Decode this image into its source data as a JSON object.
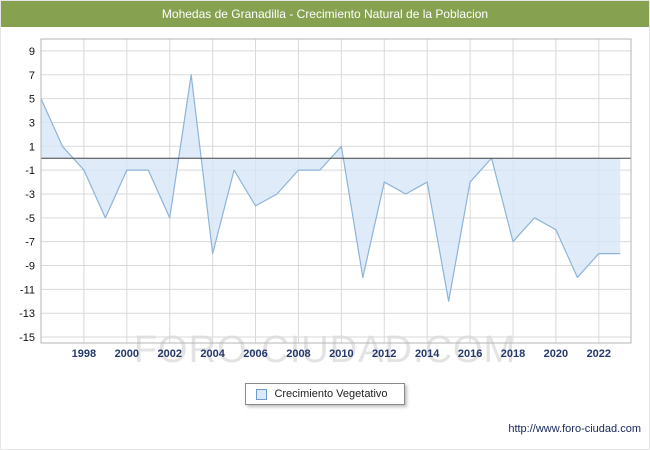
{
  "header": {
    "title": "Mohedas de Granadilla - Crecimiento Natural de la Poblacion",
    "bg_color": "#86a251"
  },
  "watermark": "FORO-CIUDAD.COM",
  "legend": {
    "label": "Crecimiento Vegetativo"
  },
  "footer": {
    "url": "http://www.foro-ciudad.com"
  },
  "chart_data": {
    "type": "area",
    "title": "Mohedas de Granadilla - Crecimiento Natural de la Poblacion",
    "x": [
      1996,
      1997,
      1998,
      1999,
      2000,
      2001,
      2002,
      2003,
      2004,
      2005,
      2006,
      2007,
      2008,
      2009,
      2010,
      2011,
      2012,
      2013,
      2014,
      2015,
      2016,
      2017,
      2018,
      2019,
      2020,
      2021,
      2022,
      2023
    ],
    "values": [
      5,
      1,
      -1,
      -5,
      -1,
      -1,
      -5,
      7,
      -8,
      -1,
      -4,
      -3,
      -1,
      -1,
      1,
      -10,
      -2,
      -3,
      -2,
      -12,
      -2,
      0,
      -7,
      -5,
      -6,
      -10,
      -8,
      -8
    ],
    "series_name": "Crecimiento Vegetativo",
    "xlim": [
      1996,
      2023.5
    ],
    "ylim": [
      -15.5,
      10
    ],
    "xticks": [
      1998,
      2000,
      2002,
      2004,
      2006,
      2008,
      2010,
      2012,
      2014,
      2016,
      2018,
      2020,
      2022
    ],
    "yticks": [
      9,
      7,
      5,
      3,
      1,
      -1,
      -3,
      -5,
      -7,
      -9,
      -11,
      -13,
      -15
    ],
    "grid": true,
    "legend_position": "bottom",
    "fill_color": "#d7e6f6",
    "line_color": "#8db4d9",
    "grid_color": "#d9d9d9",
    "zero_line_color": "#444444",
    "border_color": "#b5b5b5",
    "xtick_color": "#26386c",
    "ytick_color": "#111111"
  }
}
